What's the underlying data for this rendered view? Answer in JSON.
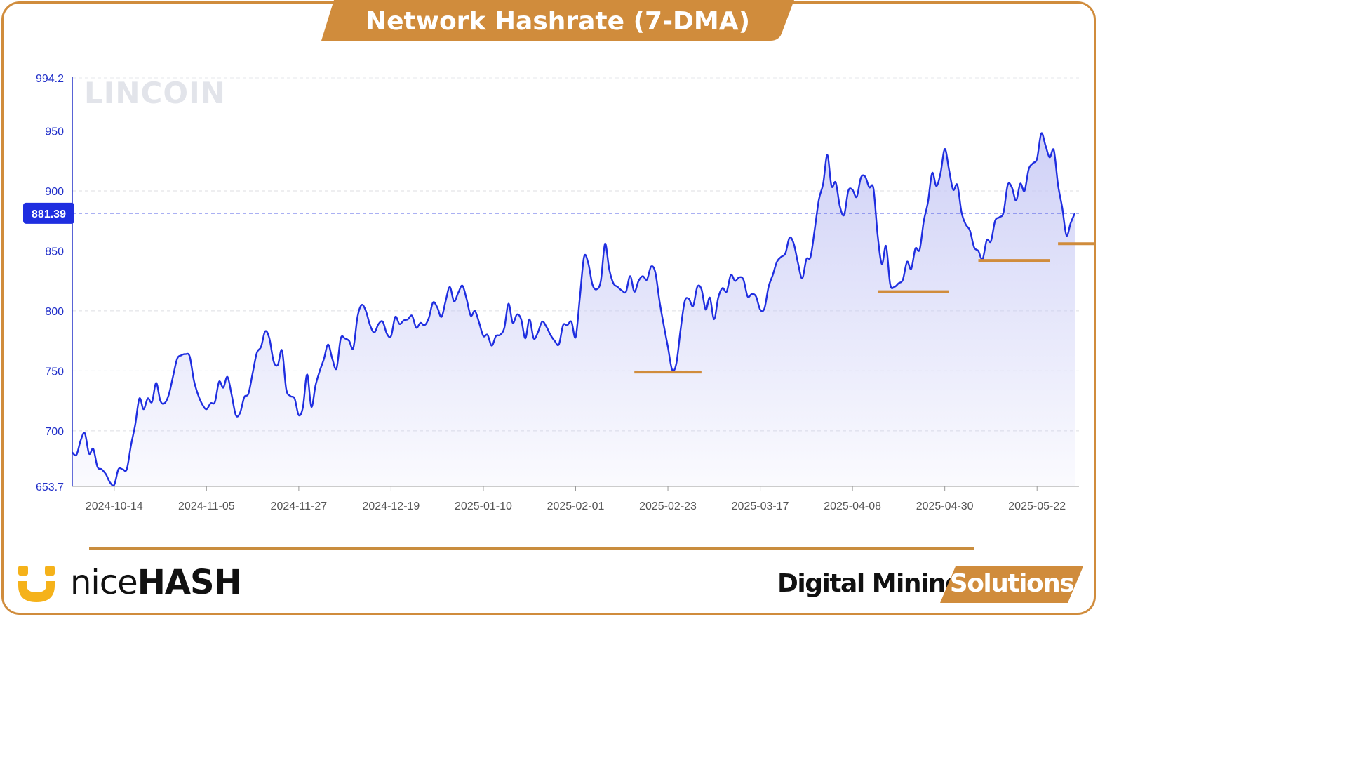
{
  "header": {
    "title": "Network Hashrate (7-DMA)"
  },
  "watermark": {
    "text": "LINCOIN"
  },
  "footer": {
    "nicehash_prefix": "nice",
    "nicehash_suffix": "HASH",
    "dms_main": "Digital Mining",
    "dms_tab": "Solutions"
  },
  "colors": {
    "accent": "#d08c3c",
    "line": "#1f2ee0",
    "fill": "#c7c9f5",
    "axis_text": "#2230c9",
    "tick_text": "#555555"
  },
  "chart_data": {
    "type": "area",
    "ylim": [
      653.7,
      994.2
    ],
    "y_ticks": [
      "994.2",
      "950",
      "900",
      "850",
      "800",
      "750",
      "700",
      "653.7"
    ],
    "y_tick_values": [
      994.2,
      950,
      900,
      850,
      800,
      750,
      700,
      653.7
    ],
    "x_ticks": [
      "2024-10-14",
      "2024-11-05",
      "2024-11-27",
      "2024-12-19",
      "2025-01-10",
      "2025-02-01",
      "2025-02-23",
      "2025-03-17",
      "2025-04-08",
      "2025-04-30",
      "2025-05-22"
    ],
    "x_range": [
      "2024-10-04",
      "2025-06-01"
    ],
    "current_value": 881.39,
    "current_value_label": "881.39",
    "support_levels": [
      {
        "start": "2025-02-15",
        "end": "2025-03-03",
        "value": 749
      },
      {
        "start": "2025-04-14",
        "end": "2025-05-01",
        "value": 816
      },
      {
        "start": "2025-05-08",
        "end": "2025-05-25",
        "value": 842
      },
      {
        "start": "2025-05-27",
        "end": "2025-06-06",
        "value": 856
      }
    ],
    "series": [
      {
        "values": [
          [
            "2024-10-04",
            682
          ],
          [
            "2024-10-05",
            680
          ],
          [
            "2024-10-06",
            692
          ],
          [
            "2024-10-07",
            698
          ],
          [
            "2024-10-08",
            681
          ],
          [
            "2024-10-09",
            685
          ],
          [
            "2024-10-10",
            670
          ],
          [
            "2024-10-11",
            668
          ],
          [
            "2024-10-12",
            664
          ],
          [
            "2024-10-13",
            657
          ],
          [
            "2024-10-14",
            655
          ],
          [
            "2024-10-15",
            668
          ],
          [
            "2024-10-16",
            668
          ],
          [
            "2024-10-17",
            668
          ],
          [
            "2024-10-18",
            688
          ],
          [
            "2024-10-19",
            705
          ],
          [
            "2024-10-20",
            727
          ],
          [
            "2024-10-21",
            718
          ],
          [
            "2024-10-22",
            727
          ],
          [
            "2024-10-23",
            724
          ],
          [
            "2024-10-24",
            740
          ],
          [
            "2024-10-25",
            725
          ],
          [
            "2024-10-26",
            723
          ],
          [
            "2024-10-27",
            730
          ],
          [
            "2024-10-28",
            745
          ],
          [
            "2024-10-29",
            760
          ],
          [
            "2024-10-30",
            763
          ],
          [
            "2024-10-31",
            764
          ],
          [
            "2024-11-01",
            762
          ],
          [
            "2024-11-02",
            742
          ],
          [
            "2024-11-03",
            730
          ],
          [
            "2024-11-04",
            722
          ],
          [
            "2024-11-05",
            718
          ],
          [
            "2024-11-06",
            723
          ],
          [
            "2024-11-07",
            724
          ],
          [
            "2024-11-08",
            741
          ],
          [
            "2024-11-09",
            736
          ],
          [
            "2024-11-10",
            745
          ],
          [
            "2024-11-11",
            730
          ],
          [
            "2024-11-12",
            713
          ],
          [
            "2024-11-13",
            715
          ],
          [
            "2024-11-14",
            728
          ],
          [
            "2024-11-15",
            731
          ],
          [
            "2024-11-16",
            748
          ],
          [
            "2024-11-17",
            765
          ],
          [
            "2024-11-18",
            770
          ],
          [
            "2024-11-19",
            783
          ],
          [
            "2024-11-20",
            777
          ],
          [
            "2024-11-21",
            758
          ],
          [
            "2024-11-22",
            755
          ],
          [
            "2024-11-23",
            767
          ],
          [
            "2024-11-24",
            735
          ],
          [
            "2024-11-25",
            729
          ],
          [
            "2024-11-26",
            727
          ],
          [
            "2024-11-27",
            713
          ],
          [
            "2024-11-28",
            720
          ],
          [
            "2024-11-29",
            747
          ],
          [
            "2024-11-30",
            720
          ],
          [
            "2024-12-01",
            738
          ],
          [
            "2024-12-02",
            750
          ],
          [
            "2024-12-03",
            760
          ],
          [
            "2024-12-04",
            772
          ],
          [
            "2024-12-05",
            760
          ],
          [
            "2024-12-06",
            752
          ],
          [
            "2024-12-07",
            777
          ],
          [
            "2024-12-08",
            777
          ],
          [
            "2024-12-09",
            775
          ],
          [
            "2024-12-10",
            769
          ],
          [
            "2024-12-11",
            795
          ],
          [
            "2024-12-12",
            805
          ],
          [
            "2024-12-13",
            800
          ],
          [
            "2024-12-14",
            788
          ],
          [
            "2024-12-15",
            782
          ],
          [
            "2024-12-16",
            789
          ],
          [
            "2024-12-17",
            791
          ],
          [
            "2024-12-18",
            781
          ],
          [
            "2024-12-19",
            779
          ],
          [
            "2024-12-20",
            795
          ],
          [
            "2024-12-21",
            789
          ],
          [
            "2024-12-22",
            792
          ],
          [
            "2024-12-23",
            793
          ],
          [
            "2024-12-24",
            796
          ],
          [
            "2024-12-25",
            786
          ],
          [
            "2024-12-26",
            790
          ],
          [
            "2024-12-27",
            788
          ],
          [
            "2024-12-28",
            794
          ],
          [
            "2024-12-29",
            807
          ],
          [
            "2024-12-30",
            803
          ],
          [
            "2024-12-31",
            795
          ],
          [
            "2025-01-01",
            808
          ],
          [
            "2025-01-02",
            820
          ],
          [
            "2025-01-03",
            808
          ],
          [
            "2025-01-04",
            815
          ],
          [
            "2025-01-05",
            821
          ],
          [
            "2025-01-06",
            810
          ],
          [
            "2025-01-07",
            796
          ],
          [
            "2025-01-08",
            800
          ],
          [
            "2025-01-09",
            790
          ],
          [
            "2025-01-10",
            779
          ],
          [
            "2025-01-11",
            780
          ],
          [
            "2025-01-12",
            771
          ],
          [
            "2025-01-13",
            779
          ],
          [
            "2025-01-14",
            780
          ],
          [
            "2025-01-15",
            786
          ],
          [
            "2025-01-16",
            806
          ],
          [
            "2025-01-17",
            790
          ],
          [
            "2025-01-18",
            797
          ],
          [
            "2025-01-19",
            793
          ],
          [
            "2025-01-20",
            777
          ],
          [
            "2025-01-21",
            793
          ],
          [
            "2025-01-22",
            777
          ],
          [
            "2025-01-23",
            782
          ],
          [
            "2025-01-24",
            791
          ],
          [
            "2025-01-25",
            787
          ],
          [
            "2025-01-26",
            780
          ],
          [
            "2025-01-27",
            775
          ],
          [
            "2025-01-28",
            772
          ],
          [
            "2025-01-29",
            788
          ],
          [
            "2025-01-30",
            788
          ],
          [
            "2025-01-31",
            791
          ],
          [
            "2025-02-01",
            778
          ],
          [
            "2025-02-02",
            811
          ],
          [
            "2025-02-03",
            845
          ],
          [
            "2025-02-04",
            840
          ],
          [
            "2025-02-05",
            822
          ],
          [
            "2025-02-06",
            818
          ],
          [
            "2025-02-07",
            825
          ],
          [
            "2025-02-08",
            856
          ],
          [
            "2025-02-09",
            835
          ],
          [
            "2025-02-10",
            823
          ],
          [
            "2025-02-11",
            820
          ],
          [
            "2025-02-12",
            817
          ],
          [
            "2025-02-13",
            816
          ],
          [
            "2025-02-14",
            829
          ],
          [
            "2025-02-15",
            816
          ],
          [
            "2025-02-16",
            825
          ],
          [
            "2025-02-17",
            829
          ],
          [
            "2025-02-18",
            826
          ],
          [
            "2025-02-19",
            837
          ],
          [
            "2025-02-20",
            832
          ],
          [
            "2025-02-21",
            808
          ],
          [
            "2025-02-22",
            788
          ],
          [
            "2025-02-23",
            770
          ],
          [
            "2025-02-24",
            751
          ],
          [
            "2025-02-25",
            756
          ],
          [
            "2025-02-26",
            784
          ],
          [
            "2025-02-27",
            808
          ],
          [
            "2025-02-28",
            810
          ],
          [
            "2025-03-01",
            804
          ],
          [
            "2025-03-02",
            820
          ],
          [
            "2025-03-03",
            818
          ],
          [
            "2025-03-04",
            801
          ],
          [
            "2025-03-05",
            811
          ],
          [
            "2025-03-06",
            793
          ],
          [
            "2025-03-07",
            811
          ],
          [
            "2025-03-08",
            819
          ],
          [
            "2025-03-09",
            816
          ],
          [
            "2025-03-10",
            830
          ],
          [
            "2025-03-11",
            825
          ],
          [
            "2025-03-12",
            828
          ],
          [
            "2025-03-13",
            826
          ],
          [
            "2025-03-14",
            812
          ],
          [
            "2025-03-15",
            814
          ],
          [
            "2025-03-16",
            812
          ],
          [
            "2025-03-17",
            801
          ],
          [
            "2025-03-18",
            802
          ],
          [
            "2025-03-19",
            820
          ],
          [
            "2025-03-20",
            830
          ],
          [
            "2025-03-21",
            841
          ],
          [
            "2025-03-22",
            845
          ],
          [
            "2025-03-23",
            848
          ],
          [
            "2025-03-24",
            861
          ],
          [
            "2025-03-25",
            856
          ],
          [
            "2025-03-26",
            840
          ],
          [
            "2025-03-27",
            827
          ],
          [
            "2025-03-28",
            843
          ],
          [
            "2025-03-29",
            845
          ],
          [
            "2025-03-30",
            868
          ],
          [
            "2025-03-31",
            893
          ],
          [
            "2025-04-01",
            906
          ],
          [
            "2025-04-02",
            930
          ],
          [
            "2025-04-03",
            904
          ],
          [
            "2025-04-04",
            907
          ],
          [
            "2025-04-05",
            887
          ],
          [
            "2025-04-06",
            880
          ],
          [
            "2025-04-07",
            900
          ],
          [
            "2025-04-08",
            901
          ],
          [
            "2025-04-09",
            895
          ],
          [
            "2025-04-10",
            911
          ],
          [
            "2025-04-11",
            912
          ],
          [
            "2025-04-12",
            903
          ],
          [
            "2025-04-13",
            902
          ],
          [
            "2025-04-14",
            863
          ],
          [
            "2025-04-15",
            839
          ],
          [
            "2025-04-16",
            854
          ],
          [
            "2025-04-17",
            822
          ],
          [
            "2025-04-18",
            820
          ],
          [
            "2025-04-19",
            823
          ],
          [
            "2025-04-20",
            826
          ],
          [
            "2025-04-21",
            841
          ],
          [
            "2025-04-22",
            835
          ],
          [
            "2025-04-23",
            852
          ],
          [
            "2025-04-24",
            851
          ],
          [
            "2025-04-25",
            875
          ],
          [
            "2025-04-26",
            891
          ],
          [
            "2025-04-27",
            915
          ],
          [
            "2025-04-28",
            904
          ],
          [
            "2025-04-29",
            915
          ],
          [
            "2025-04-30",
            935
          ],
          [
            "2025-05-01",
            918
          ],
          [
            "2025-05-02",
            901
          ],
          [
            "2025-05-03",
            905
          ],
          [
            "2025-05-04",
            882
          ],
          [
            "2025-05-05",
            872
          ],
          [
            "2025-05-06",
            867
          ],
          [
            "2025-05-07",
            853
          ],
          [
            "2025-05-08",
            850
          ],
          [
            "2025-05-09",
            843
          ],
          [
            "2025-05-10",
            859
          ],
          [
            "2025-05-11",
            858
          ],
          [
            "2025-05-12",
            875
          ],
          [
            "2025-05-13",
            878
          ],
          [
            "2025-05-14",
            882
          ],
          [
            "2025-05-15",
            905
          ],
          [
            "2025-05-16",
            903
          ],
          [
            "2025-05-17",
            892
          ],
          [
            "2025-05-18",
            906
          ],
          [
            "2025-05-19",
            900
          ],
          [
            "2025-05-20",
            918
          ],
          [
            "2025-05-21",
            923
          ],
          [
            "2025-05-22",
            927
          ],
          [
            "2025-05-23",
            948
          ],
          [
            "2025-05-24",
            938
          ],
          [
            "2025-05-25",
            928
          ],
          [
            "2025-05-26",
            934
          ],
          [
            "2025-05-27",
            905
          ],
          [
            "2025-05-28",
            886
          ],
          [
            "2025-05-29",
            863
          ],
          [
            "2025-05-30",
            873
          ],
          [
            "2025-05-31",
            881.39
          ]
        ]
      }
    ]
  }
}
